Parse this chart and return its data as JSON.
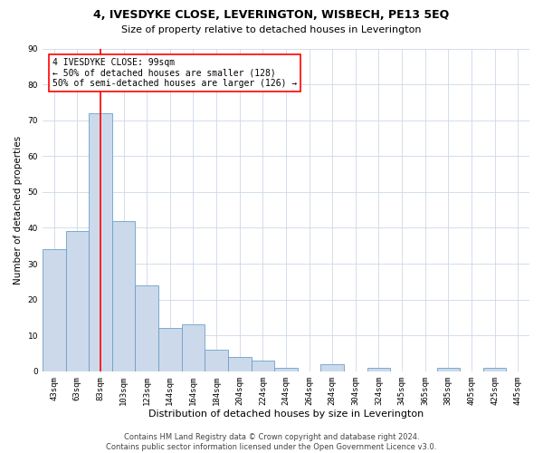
{
  "title": "4, IVESDYKE CLOSE, LEVERINGTON, WISBECH, PE13 5EQ",
  "subtitle": "Size of property relative to detached houses in Leverington",
  "xlabel": "Distribution of detached houses by size in Leverington",
  "ylabel": "Number of detached properties",
  "categories": [
    "43sqm",
    "63sqm",
    "83sqm",
    "103sqm",
    "123sqm",
    "144sqm",
    "164sqm",
    "184sqm",
    "204sqm",
    "224sqm",
    "244sqm",
    "264sqm",
    "284sqm",
    "304sqm",
    "324sqm",
    "345sqm",
    "365sqm",
    "385sqm",
    "405sqm",
    "425sqm",
    "445sqm"
  ],
  "values": [
    34,
    39,
    72,
    42,
    24,
    12,
    13,
    6,
    4,
    3,
    1,
    0,
    2,
    0,
    1,
    0,
    0,
    1,
    0,
    1,
    0
  ],
  "bar_color": "#ccd9ea",
  "bar_edge_color": "#6aa0cb",
  "red_line_index": 2.5,
  "ylim": [
    0,
    90
  ],
  "yticks": [
    0,
    10,
    20,
    30,
    40,
    50,
    60,
    70,
    80,
    90
  ],
  "annotation_line1": "4 IVESDYKE CLOSE: 99sqm",
  "annotation_line2": "← 50% of detached houses are smaller (128)",
  "annotation_line3": "50% of semi-detached houses are larger (126) →",
  "footer1": "Contains HM Land Registry data © Crown copyright and database right 2024.",
  "footer2": "Contains public sector information licensed under the Open Government Licence v3.0.",
  "background_color": "#ffffff",
  "grid_color": "#cdd8e8",
  "title_fontsize": 9,
  "subtitle_fontsize": 8,
  "ylabel_fontsize": 7.5,
  "xlabel_fontsize": 8,
  "tick_fontsize": 6.5,
  "footer_fontsize": 6,
  "annot_fontsize": 7
}
